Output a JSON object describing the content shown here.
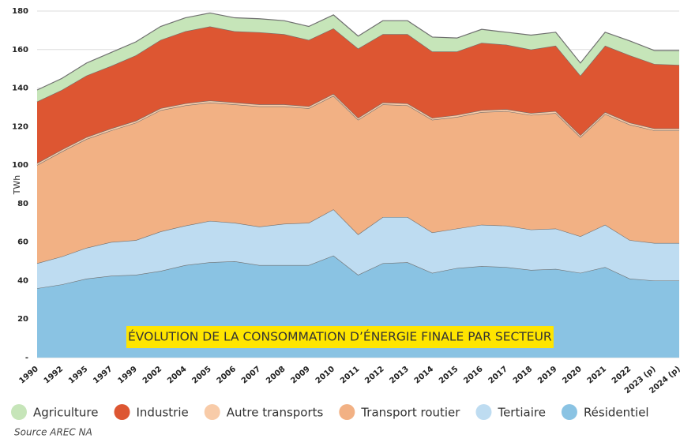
{
  "chart_data": {
    "type": "stacked_area",
    "title": "ÉVOLUTION DE LA CONSOMMATION D’ÉNERGIE FINALE PAR SECTEUR",
    "y_label": "TWh",
    "source": "Source AREC NA",
    "categories": [
      "1990",
      "1992",
      "1995",
      "1997",
      "1999",
      "2002",
      "2004",
      "2005",
      "2006",
      "2007",
      "2008",
      "2009",
      "2010",
      "2011",
      "2012",
      "2013",
      "2014",
      "2015",
      "2016",
      "2017",
      "2018",
      "2019",
      "2020",
      "2021",
      "2022",
      "2023 (p)",
      "2024 (p)"
    ],
    "series": [
      {
        "name": "Agriculture",
        "color": "#c6e5b9",
        "values": [
          6,
          6,
          6.5,
          7,
          7,
          7,
          7,
          7,
          7,
          7,
          7,
          7,
          7,
          6.5,
          7,
          7,
          7.5,
          7,
          7,
          6.5,
          7.5,
          7,
          6.5,
          7,
          7.5,
          7,
          7.5
        ]
      },
      {
        "name": "Industrie",
        "color": "#dd5632",
        "values": [
          32,
          31,
          32,
          32.5,
          34,
          35.5,
          37.5,
          38.5,
          37,
          37.5,
          36.5,
          34.5,
          34,
          36,
          35.5,
          36,
          34.5,
          33,
          35,
          33.5,
          33,
          34,
          31,
          34.5,
          35,
          33.5,
          33
        ]
      },
      {
        "name": "Autre transports",
        "color": "#f8cba8",
        "values": [
          1,
          1,
          1,
          1,
          1,
          1,
          1,
          1,
          1,
          1,
          1,
          1,
          1,
          1,
          1,
          1,
          1,
          1,
          1,
          1,
          1,
          1,
          1,
          1,
          1,
          1,
          1
        ]
      },
      {
        "name": "Transport routier",
        "color": "#f2b184",
        "values": [
          51,
          54.5,
          56.5,
          58,
          61,
          63,
          62.5,
          61.5,
          61.5,
          62.5,
          61,
          59.5,
          59,
          59.5,
          58.5,
          58,
          58.5,
          58,
          58.5,
          59.5,
          59.5,
          60,
          51.5,
          57.5,
          60,
          58.5,
          58.5
        ]
      },
      {
        "name": "Tertiaire",
        "color": "#bedcf1",
        "values": [
          13,
          14.5,
          16,
          17.5,
          18,
          20.5,
          20.5,
          21.5,
          20,
          20,
          21.5,
          22,
          24,
          21,
          24,
          23.5,
          21,
          20.5,
          21.5,
          21.5,
          21,
          21,
          19,
          22,
          20,
          19.5,
          19.5
        ]
      },
      {
        "name": "Résidentiel",
        "color": "#8ac3e3",
        "values": [
          36,
          38,
          41,
          42.5,
          43,
          45,
          48,
          49.5,
          50,
          48,
          48,
          48,
          53,
          43,
          49,
          49.5,
          44,
          46.5,
          47.5,
          47,
          45.5,
          46,
          44,
          47,
          41,
          40,
          40
        ]
      }
    ],
    "ylim": [
      0,
      180
    ],
    "yticks": [
      {
        "value": 0,
        "label": "-"
      },
      20,
      40,
      60,
      80,
      100,
      120,
      140,
      160,
      180
    ],
    "grid": true,
    "legend": "bottom"
  }
}
